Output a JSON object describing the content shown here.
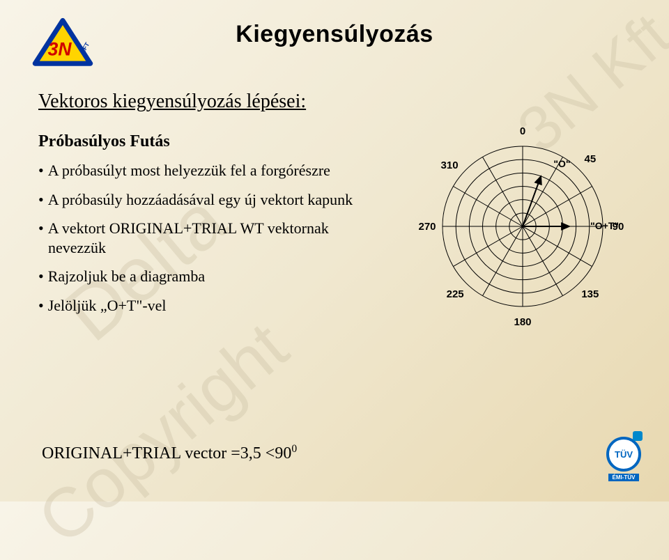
{
  "title": "Kiegyensúlyozás",
  "watermark": {
    "line1": "3N Kft.",
    "line2": "Delta",
    "line3": "Copyright"
  },
  "subtitle": "Vektoros kiegyensúlyozás lépései:",
  "section_head": "Próbasúlyos Futás",
  "bullets": [
    "A próbasúlyt most helyezzük fel a forgórészre",
    "A próbasúly hozzáadásával egy új vektort kapunk",
    "A vektort ORIGINAL+TRIAL WT vektornak nevezzük",
    "Rajzoljuk be a diagramba",
    "Jelöljük „O+T\"-vel"
  ],
  "result": {
    "prefix": "ORIGINAL+TRIAL vector =3,5 <90",
    "sup": "0"
  },
  "polar": {
    "rings": 6,
    "spokes": 12,
    "ring_color": "#000000",
    "spoke_color": "#000000",
    "background": "transparent",
    "ticks": [
      {
        "angle": 0,
        "label": "0"
      },
      {
        "angle": 45,
        "label": "45"
      },
      {
        "angle": 90,
        "label": "90"
      },
      {
        "angle": 135,
        "label": "135"
      },
      {
        "angle": 180,
        "label": "180"
      },
      {
        "angle": 225,
        "label": "225"
      },
      {
        "angle": 270,
        "label": "270"
      },
      {
        "angle": 310,
        "label": "310"
      }
    ],
    "vectors": [
      {
        "name": "O",
        "label": "\"O\"",
        "angle_deg": 20,
        "magnitude_rings": 4.0
      },
      {
        "name": "O+T",
        "label": "\"O+T\"",
        "angle_deg": 90,
        "magnitude_rings": 3.5
      }
    ],
    "vector_color": "#000000",
    "vector_width": 2
  },
  "logo": {
    "text": "3N",
    "suffix": "KFT"
  },
  "tuv": {
    "text": "TÜV",
    "bar": "ÉMI-TÜV"
  }
}
